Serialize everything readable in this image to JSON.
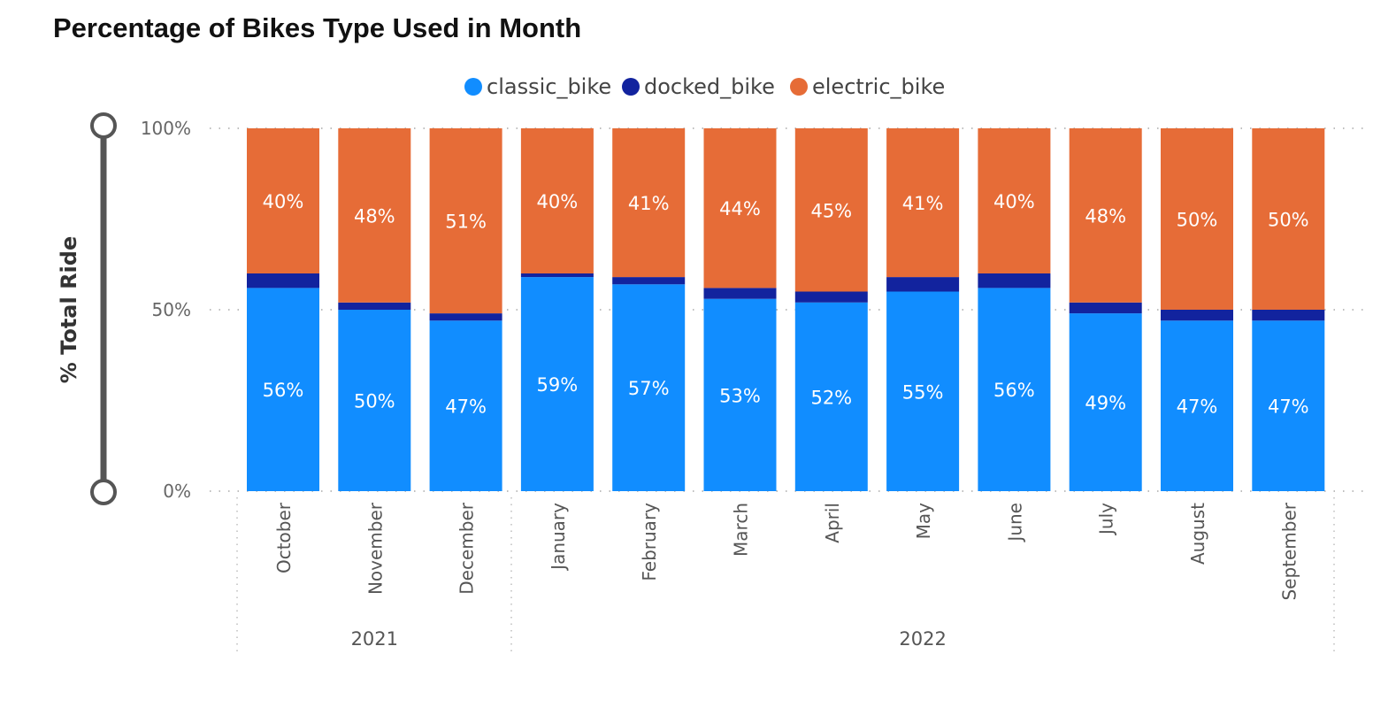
{
  "title": "Percentage of Bikes Type Used in Month",
  "chart_data": {
    "type": "bar",
    "stacked": true,
    "title": "Percentage of Bikes Type Used in Month",
    "ylabel": "% Total Ride",
    "xlabel": "",
    "ylim": [
      0,
      100
    ],
    "yticks": [
      "0%",
      "50%",
      "100%"
    ],
    "grid": true,
    "legend_position": "top-center",
    "categories": [
      "October",
      "November",
      "December",
      "January",
      "February",
      "March",
      "April",
      "May",
      "June",
      "July",
      "August",
      "September"
    ],
    "groups": [
      {
        "label": "2021",
        "count": 3
      },
      {
        "label": "2022",
        "count": 9
      }
    ],
    "series": [
      {
        "name": "classic_bike",
        "color": "#118DFF",
        "values": [
          56,
          50,
          47,
          59,
          57,
          53,
          52,
          55,
          56,
          49,
          47,
          47
        ],
        "labels": [
          "56%",
          "50%",
          "47%",
          "59%",
          "57%",
          "53%",
          "52%",
          "55%",
          "56%",
          "49%",
          "47%",
          "47%"
        ]
      },
      {
        "name": "docked_bike",
        "color": "#12239E",
        "values": [
          4,
          2,
          2,
          1,
          2,
          3,
          3,
          4,
          4,
          3,
          3,
          3
        ],
        "labels": [
          "",
          "",
          "",
          "",
          "",
          "",
          "",
          "",
          "",
          "",
          "",
          ""
        ]
      },
      {
        "name": "electric_bike",
        "color": "#E66C37",
        "values": [
          40,
          48,
          51,
          40,
          41,
          44,
          45,
          41,
          40,
          48,
          50,
          50
        ],
        "labels": [
          "40%",
          "48%",
          "51%",
          "40%",
          "41%",
          "44%",
          "45%",
          "41%",
          "40%",
          "48%",
          "50%",
          "50%"
        ]
      }
    ]
  }
}
